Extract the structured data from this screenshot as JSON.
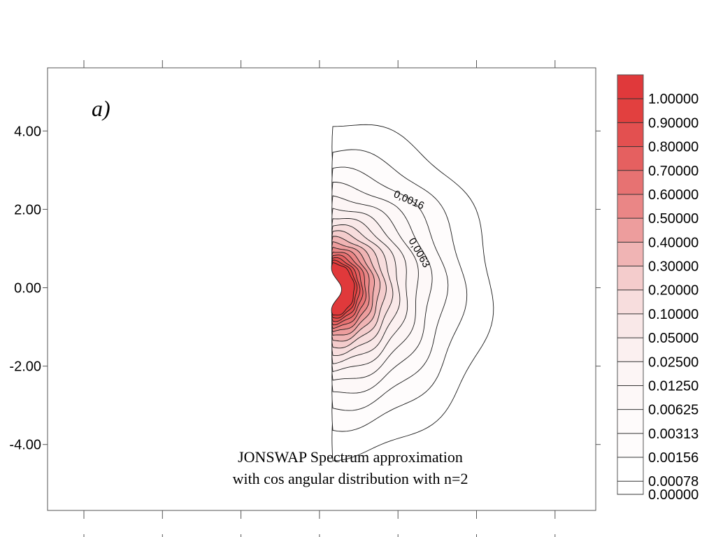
{
  "chart_data": {
    "type": "heatmap",
    "subtype": "filled-contour",
    "panel_label": "a)",
    "caption": [
      "JONSWAP  Spectrum approximation",
      "with cos angular distribution with n=2"
    ],
    "title": "",
    "xlabel": "",
    "ylabel": "",
    "ylim": [
      -5.5,
      5.8
    ],
    "y_ticks": [
      4.0,
      2.0,
      0.0,
      -2.0,
      -4.0
    ],
    "y_tick_labels": [
      "4.00",
      "2.00",
      "0.00",
      "-2.00",
      "-4.00"
    ],
    "x_tick_count": 7,
    "x_tick_labels_visible": false,
    "grid": false,
    "legend": "right-colorbar",
    "colorbar": {
      "levels": [
        1.0,
        0.9,
        0.8,
        0.7,
        0.6,
        0.5,
        0.4,
        0.3,
        0.2,
        0.1,
        0.05,
        0.025,
        0.0125,
        0.00625,
        0.00313,
        0.00156,
        0.00078,
        0.0
      ],
      "labels": [
        "1.00000",
        "0.90000",
        "0.80000",
        "0.70000",
        "0.60000",
        "0.50000",
        "0.40000",
        "0.30000",
        "0.20000",
        "0.10000",
        "0.05000",
        "0.02500",
        "0.01250",
        "0.00625",
        "0.00313",
        "0.00156",
        "0.00078",
        "0.00000"
      ],
      "colors": [
        "#e0393b",
        "#e2403f",
        "#e35050",
        "#e56060",
        "#e77272",
        "#ea8686",
        "#ed9d9d",
        "#f0b4b4",
        "#f4cccc",
        "#f7dddd",
        "#f9e8e8",
        "#fbf0f0",
        "#fcf5f5",
        "#fdf8f8",
        "#fefbfb",
        "#fefcfc",
        "#ffffff"
      ]
    },
    "contour_labels": [
      "0,0016",
      "0,0063"
    ],
    "peak": {
      "x": 0.5,
      "y": 0.0
    },
    "line_color": "#1a1a1a"
  }
}
